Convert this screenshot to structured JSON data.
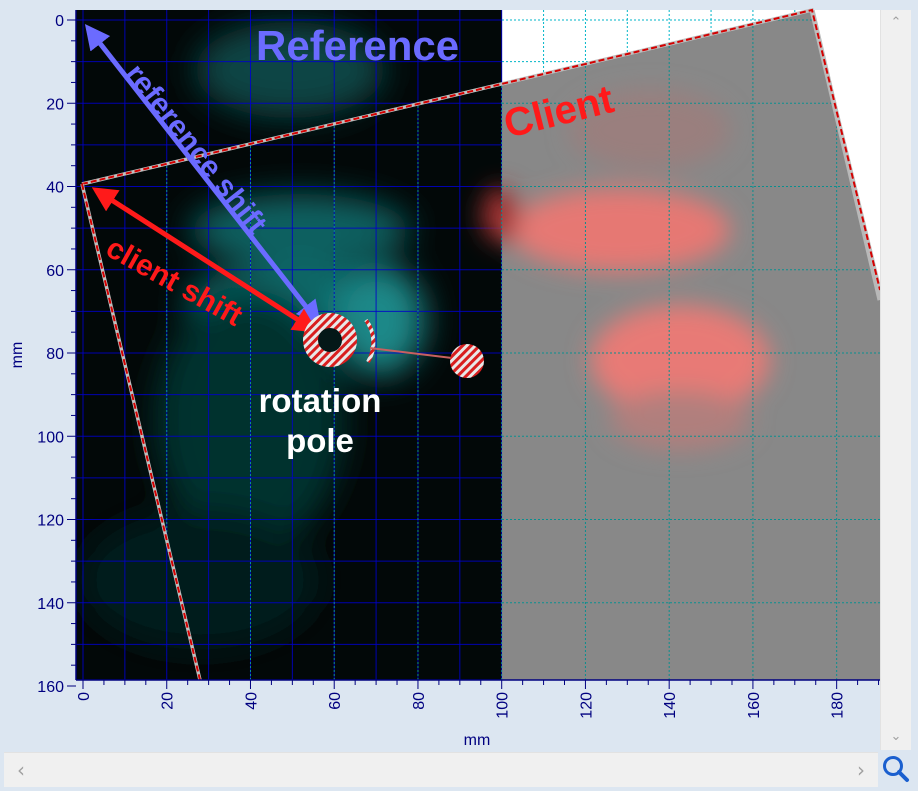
{
  "overlay": {
    "reference_label": "Reference",
    "client_label": "Client",
    "reference_shift_label": "reference shift",
    "client_shift_label": "client shift",
    "rotation_pole_line1": "rotation",
    "rotation_pole_line2": "pole"
  },
  "axes": {
    "y_label": "mm",
    "x_label": "mm",
    "y_ticks": [
      "0",
      "20",
      "40",
      "60",
      "80",
      "100",
      "120",
      "140",
      "160"
    ],
    "x_ticks": [
      "0",
      "20",
      "40",
      "60",
      "80",
      "100",
      "120",
      "140",
      "160",
      "180"
    ],
    "y_range_mm": [
      0,
      160
    ],
    "x_range_mm": [
      0,
      190
    ]
  },
  "colors": {
    "reference": "#6b6bff",
    "client": "#ff1a1a",
    "axis_text": "#000080",
    "reference_grid": "#0000cc",
    "client_grid": "#00b5c8"
  },
  "icons": {
    "zoom": "magnifier-icon",
    "scroll_up": "chevron-up-icon",
    "scroll_down": "chevron-down-icon",
    "scroll_left": "chevron-left-icon",
    "scroll_right": "chevron-right-icon"
  }
}
